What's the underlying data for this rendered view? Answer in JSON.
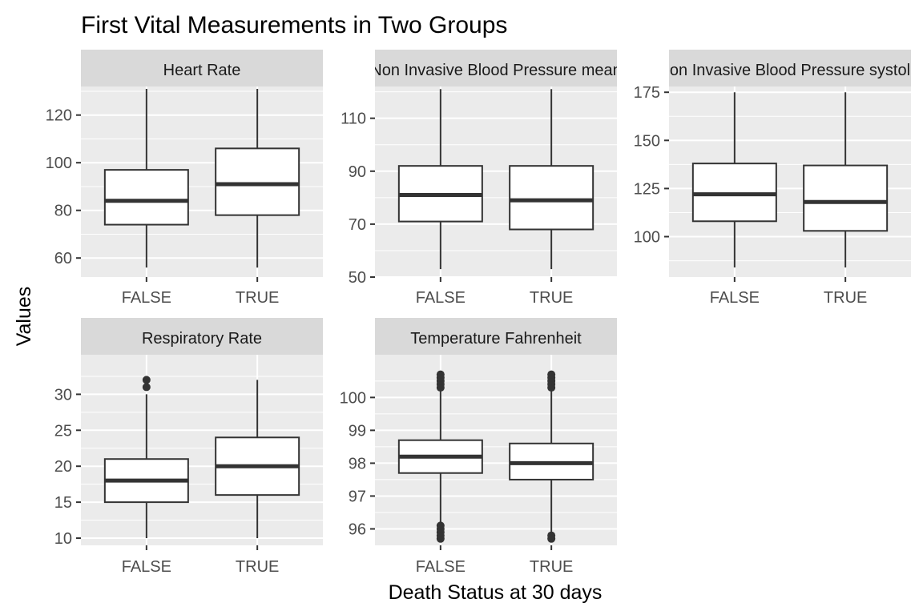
{
  "chart_data": {
    "type": "boxplot",
    "title": "First Vital Measurements in Two Groups",
    "xlabel": "Death Status at 30 days",
    "ylabel": "Values",
    "categories": [
      "FALSE",
      "TRUE"
    ],
    "panels": [
      {
        "strip": "Heart Rate",
        "ylim": [
          52,
          132
        ],
        "yticks": [
          60,
          80,
          100,
          120
        ],
        "boxes": [
          {
            "category": "FALSE",
            "lower_whisker": 56,
            "q1": 74,
            "median": 84,
            "q3": 97,
            "upper_whisker": 131,
            "outliers": []
          },
          {
            "category": "TRUE",
            "lower_whisker": 56,
            "q1": 78,
            "median": 91,
            "q3": 106,
            "upper_whisker": 131,
            "outliers": []
          }
        ]
      },
      {
        "strip": "Non Invasive Blood Pressure mean",
        "ylim": [
          50,
          122
        ],
        "yticks": [
          50,
          70,
          90,
          110
        ],
        "boxes": [
          {
            "category": "FALSE",
            "lower_whisker": 53,
            "q1": 71,
            "median": 81,
            "q3": 92,
            "upper_whisker": 121,
            "outliers": []
          },
          {
            "category": "TRUE",
            "lower_whisker": 53,
            "q1": 68,
            "median": 79,
            "q3": 92,
            "upper_whisker": 121,
            "outliers": []
          }
        ]
      },
      {
        "strip": "Non Invasive Blood Pressure systolic",
        "ylim": [
          79,
          178
        ],
        "yticks": [
          100,
          125,
          150,
          175
        ],
        "boxes": [
          {
            "category": "FALSE",
            "lower_whisker": 84,
            "q1": 108,
            "median": 122,
            "q3": 138,
            "upper_whisker": 175,
            "outliers": []
          },
          {
            "category": "TRUE",
            "lower_whisker": 84,
            "q1": 103,
            "median": 118,
            "q3": 137,
            "upper_whisker": 175,
            "outliers": []
          }
        ]
      },
      {
        "strip": "Respiratory Rate",
        "ylim": [
          9,
          35.5
        ],
        "yticks": [
          10,
          15,
          20,
          25,
          30
        ],
        "boxes": [
          {
            "category": "FALSE",
            "lower_whisker": 10,
            "q1": 15,
            "median": 18,
            "q3": 21,
            "upper_whisker": 30,
            "outliers": [
              31,
              32
            ]
          },
          {
            "category": "TRUE",
            "lower_whisker": 10,
            "q1": 16,
            "median": 20,
            "q3": 24,
            "upper_whisker": 32,
            "outliers": []
          }
        ]
      },
      {
        "strip": "Temperature Fahrenheit",
        "ylim": [
          95.5,
          101.3
        ],
        "yticks": [
          96,
          97,
          98,
          99,
          100
        ],
        "boxes": [
          {
            "category": "FALSE",
            "lower_whisker": 96.2,
            "q1": 97.7,
            "median": 98.2,
            "q3": 98.7,
            "upper_whisker": 100.2,
            "outliers": [
              95.7,
              95.8,
              95.9,
              96.0,
              96.1,
              100.3,
              100.4,
              100.5,
              100.6,
              100.7
            ]
          },
          {
            "category": "TRUE",
            "lower_whisker": 95.9,
            "q1": 97.5,
            "median": 98.0,
            "q3": 98.6,
            "upper_whisker": 100.2,
            "outliers": [
              95.7,
              95.8,
              100.3,
              100.4,
              100.5,
              100.6,
              100.7
            ]
          }
        ]
      }
    ]
  }
}
